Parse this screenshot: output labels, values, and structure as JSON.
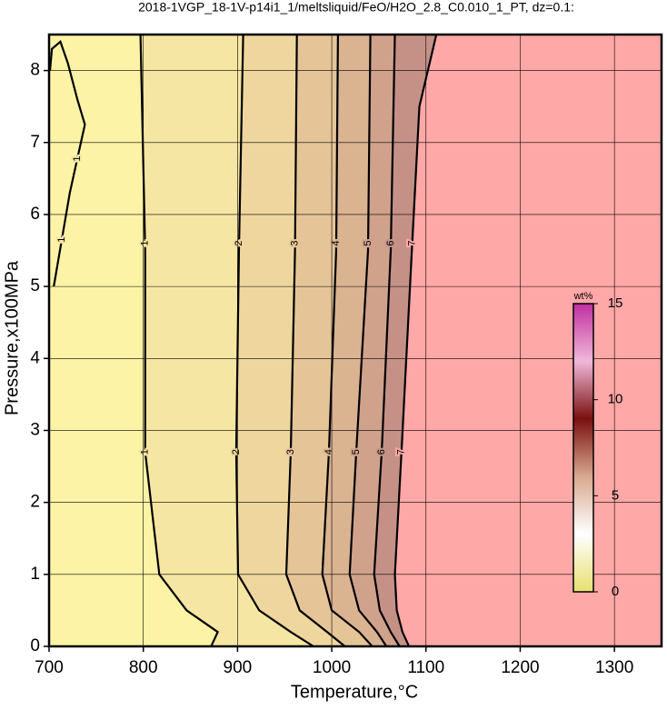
{
  "chart_data": {
    "type": "contour",
    "title": "2018-1VGP_18-1V-p14i1_1/meltsliquid/FeO/H2O_2.8_C0.010_1_PT, dz=0.1:",
    "xlabel": "Temperature,°C",
    "ylabel": "Pressure,x100MPa",
    "xlim": [
      700,
      1350
    ],
    "ylim": [
      0,
      8.5
    ],
    "xticks": [
      700,
      800,
      900,
      1000,
      1100,
      1200,
      1300
    ],
    "yticks": [
      0,
      1,
      2,
      3,
      4,
      5,
      6,
      7,
      8
    ],
    "grid": true,
    "band_colors": [
      "#fdf3a6",
      "#f6e6a3",
      "#eed69e",
      "#e5c597",
      "#dab391",
      "#d0a28c",
      "#c59187",
      "#ffa8a8"
    ],
    "contours": [
      {
        "level": 1,
        "x": [
          705,
          722,
          738,
          730,
          720,
          712,
          703,
          701
        ],
        "y": [
          5.0,
          6.3,
          7.25,
          7.6,
          8.1,
          8.4,
          8.3,
          8.0
        ]
      },
      {
        "level": 1,
        "x": [
          797,
          802,
          802,
          817,
          846,
          879,
          872
        ],
        "y": [
          8.5,
          5.5,
          2.7,
          1.0,
          0.5,
          0.2,
          0
        ]
      },
      {
        "level": 2,
        "x": [
          906,
          901.5,
          898.6,
          900.6,
          923,
          956.5,
          980.6
        ],
        "y": [
          8.5,
          5.5,
          2.7,
          1.0,
          0.5,
          0.2,
          0
        ]
      },
      {
        "level": 3,
        "x": [
          963,
          961,
          956.5,
          951.7,
          966,
          995,
          1014
        ],
        "y": [
          8.5,
          5.5,
          2.7,
          1.0,
          0.5,
          0.2,
          0
        ]
      },
      {
        "level": 4,
        "x": [
          1006.6,
          1004.7,
          997,
          990,
          1000,
          1029,
          1043
        ],
        "y": [
          8.5,
          5.5,
          2.7,
          1.0,
          0.5,
          0.2,
          0
        ]
      },
      {
        "level": 5,
        "x": [
          1041,
          1038.5,
          1026,
          1019,
          1029,
          1048,
          1058
        ],
        "y": [
          8.5,
          5.5,
          2.7,
          1.0,
          0.5,
          0.2,
          0
        ]
      },
      {
        "level": 6,
        "x": [
          1067,
          1062.6,
          1053,
          1045,
          1051,
          1062.6,
          1072
        ],
        "y": [
          8.5,
          5.5,
          2.7,
          1.0,
          0.5,
          0.2,
          0
        ]
      },
      {
        "level": 7,
        "x": [
          1111,
          1093,
          1085,
          1074,
          1067,
          1069,
          1075,
          1082
        ],
        "y": [
          8.5,
          7.5,
          5.5,
          2.7,
          1.0,
          0.5,
          0.2,
          0
        ]
      }
    ],
    "colorbar": {
      "label": "wt%",
      "lim": [
        0,
        15
      ],
      "ticks": [
        0,
        5,
        10,
        15
      ],
      "colors": [
        "#e8e070",
        "#ffffff",
        "#d8a890",
        "#7a1010",
        "#f0b8d8",
        "#c030a0"
      ]
    }
  }
}
